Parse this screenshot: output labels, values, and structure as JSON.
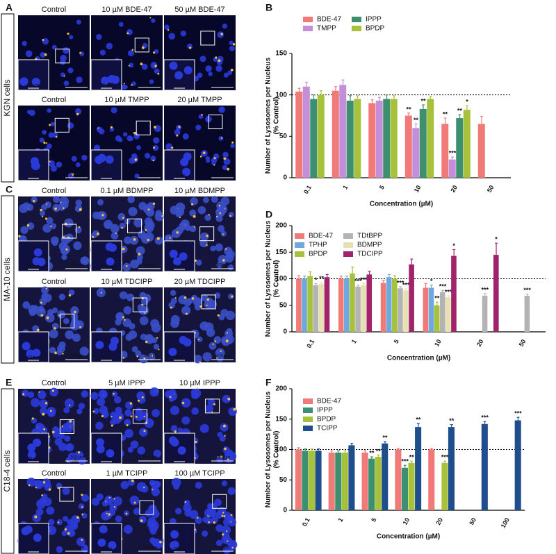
{
  "image_panels": [
    {
      "label": "A",
      "cell_line": "KGN cells",
      "rows": [
        [
          "Control",
          "10 µM BDE-47",
          "50 µM BDE-47"
        ],
        [
          "Control",
          "10 µM TMPP",
          "20 µM TMPP"
        ]
      ],
      "inset_scale": "20 µm",
      "scale": "100 µm"
    },
    {
      "label": "C",
      "cell_line": "MA-10 cells",
      "rows": [
        [
          "Control",
          "0.1 µM BDMPP",
          "10 µM BDMPP"
        ],
        [
          "Control",
          "10 µM TDCIPP",
          "20 µM TDCIPP"
        ]
      ],
      "inset_scale": "20 µm",
      "scale": "100 µm"
    },
    {
      "label": "E",
      "cell_line": "C18-4 cells",
      "rows": [
        [
          "Control",
          "5 µM IPPP",
          "10 µM IPPP"
        ],
        [
          "Control",
          "1 µM TCIPP",
          "100 µM TCIPP"
        ]
      ],
      "inset_scale": "20 µm",
      "scale": "100 µm"
    }
  ],
  "chart_data": [
    {
      "type": "bar",
      "label": "B",
      "ylabel": [
        "Number of Lysosomes per Nucleus",
        "(% Control)"
      ],
      "xlabel": "Concentration (µM)",
      "categories": [
        "0.1",
        "1",
        "5",
        "10",
        "20",
        "50"
      ],
      "ylim": [
        0,
        150
      ],
      "yticks": [
        0,
        50,
        100,
        150
      ],
      "reference_line": 100,
      "legend_columns": 2,
      "series": [
        {
          "name": "BDE-47",
          "color": "#f07a78",
          "values": [
            104,
            105,
            90,
            75,
            65,
            65
          ],
          "errors": [
            4,
            5,
            4,
            3,
            7,
            9
          ],
          "stars": [
            null,
            null,
            null,
            "**",
            "**",
            null
          ]
        },
        {
          "name": "TMPP",
          "color": "#c48fd8",
          "values": [
            110,
            112,
            93,
            60,
            22,
            null
          ],
          "errors": [
            5,
            6,
            4,
            5,
            3,
            null
          ],
          "stars": [
            null,
            null,
            null,
            "**",
            "***",
            null
          ]
        },
        {
          "name": "IPPP",
          "color": "#3c8f6f",
          "values": [
            95,
            93,
            95,
            83,
            72,
            null
          ],
          "errors": [
            5,
            6,
            5,
            5,
            4,
            null
          ],
          "stars": [
            null,
            null,
            null,
            "**",
            "**",
            null
          ]
        },
        {
          "name": "BPDP",
          "color": "#a7c23a",
          "values": [
            100,
            95,
            95,
            95,
            82,
            null
          ],
          "errors": [
            5,
            4,
            4,
            3,
            5,
            null
          ],
          "stars": [
            null,
            null,
            null,
            null,
            "*",
            null
          ]
        }
      ]
    },
    {
      "type": "bar",
      "label": "D",
      "ylabel": [
        "Number of Lysosomes per Nucleus",
        "(% Control)"
      ],
      "xlabel": "Concentration (µM)",
      "categories": [
        "0.1",
        "1",
        "5",
        "10",
        "20",
        "50"
      ],
      "ylim": [
        0,
        200
      ],
      "yticks": [
        0,
        50,
        100,
        150,
        200
      ],
      "reference_line": 100,
      "legend_columns": 2,
      "series": [
        {
          "name": "BDE-47",
          "color": "#f07a78",
          "values": [
            100,
            100,
            92,
            83,
            null,
            null
          ],
          "errors": [
            6,
            5,
            5,
            8,
            null,
            null
          ],
          "stars": [
            null,
            null,
            null,
            null,
            null,
            null
          ]
        },
        {
          "name": "TPHP",
          "color": "#6fa8dc",
          "values": [
            100,
            100,
            103,
            83,
            null,
            null
          ],
          "errors": [
            5,
            5,
            5,
            5,
            null,
            null
          ],
          "stars": [
            null,
            null,
            null,
            "*",
            null,
            null
          ]
        },
        {
          "name": "BPDP",
          "color": "#a7c23a",
          "values": [
            105,
            110,
            100,
            50,
            null,
            null
          ],
          "errors": [
            8,
            12,
            6,
            6,
            null,
            null
          ],
          "stars": [
            null,
            null,
            null,
            "**",
            null,
            null
          ]
        },
        {
          "name": "TDtBPP",
          "color": "#b3b3b3",
          "values": [
            88,
            85,
            82,
            75,
            68,
            68
          ],
          "errors": [
            3,
            3,
            3,
            3,
            4,
            3
          ],
          "stars": [
            "*",
            "***",
            "***",
            "***",
            "***",
            "***"
          ]
        },
        {
          "name": "BDMPP",
          "color": "#e6e0b2",
          "values": [
            90,
            88,
            78,
            65,
            null,
            null
          ],
          "errors": [
            3,
            3,
            3,
            3,
            null,
            null
          ],
          "stars": [
            "**",
            "***",
            "***",
            "***",
            null,
            null
          ]
        },
        {
          "name": "TDCIPP",
          "color": "#a0236b",
          "values": [
            103,
            108,
            127,
            143,
            145,
            null
          ],
          "errors": [
            5,
            6,
            10,
            12,
            22,
            null
          ],
          "stars": [
            null,
            null,
            null,
            "*",
            "*",
            null
          ]
        }
      ]
    },
    {
      "type": "bar",
      "label": "F",
      "ylabel": [
        "Number of Lysosomes per Nucleus",
        "(% Control)"
      ],
      "xlabel": "Concentration (µM)",
      "categories": [
        "0.1",
        "1",
        "5",
        "10",
        "20",
        "50",
        "100"
      ],
      "ylim": [
        0,
        200
      ],
      "yticks": [
        0,
        50,
        100,
        150,
        200
      ],
      "reference_line": 100,
      "legend_columns": 1,
      "series": [
        {
          "name": "BDE-47",
          "color": "#f07a78",
          "values": [
            100,
            95,
            95,
            100,
            100,
            null,
            null
          ],
          "errors": [
            3,
            3,
            3,
            2,
            2,
            null,
            null
          ],
          "stars": [
            null,
            null,
            null,
            null,
            null,
            null,
            null
          ]
        },
        {
          "name": "IPPP",
          "color": "#3c8f6f",
          "values": [
            98,
            95,
            85,
            70,
            null,
            null,
            null
          ],
          "errors": [
            3,
            3,
            3,
            4,
            null,
            null,
            null
          ],
          "stars": [
            null,
            null,
            "**",
            "***",
            null,
            null,
            null
          ]
        },
        {
          "name": "BPDP",
          "color": "#a7c23a",
          "values": [
            98,
            95,
            88,
            78,
            78,
            null,
            null
          ],
          "errors": [
            3,
            3,
            3,
            3,
            3,
            null,
            null
          ],
          "stars": [
            null,
            null,
            "**",
            "**",
            "***",
            null,
            null
          ]
        },
        {
          "name": "TCIPP",
          "color": "#1f4e8c",
          "values": [
            98,
            107,
            110,
            137,
            137,
            142,
            148
          ],
          "errors": [
            3,
            3,
            3,
            6,
            4,
            4,
            5
          ],
          "stars": [
            null,
            null,
            "**",
            "**",
            "**",
            "***",
            "***"
          ]
        }
      ]
    }
  ]
}
